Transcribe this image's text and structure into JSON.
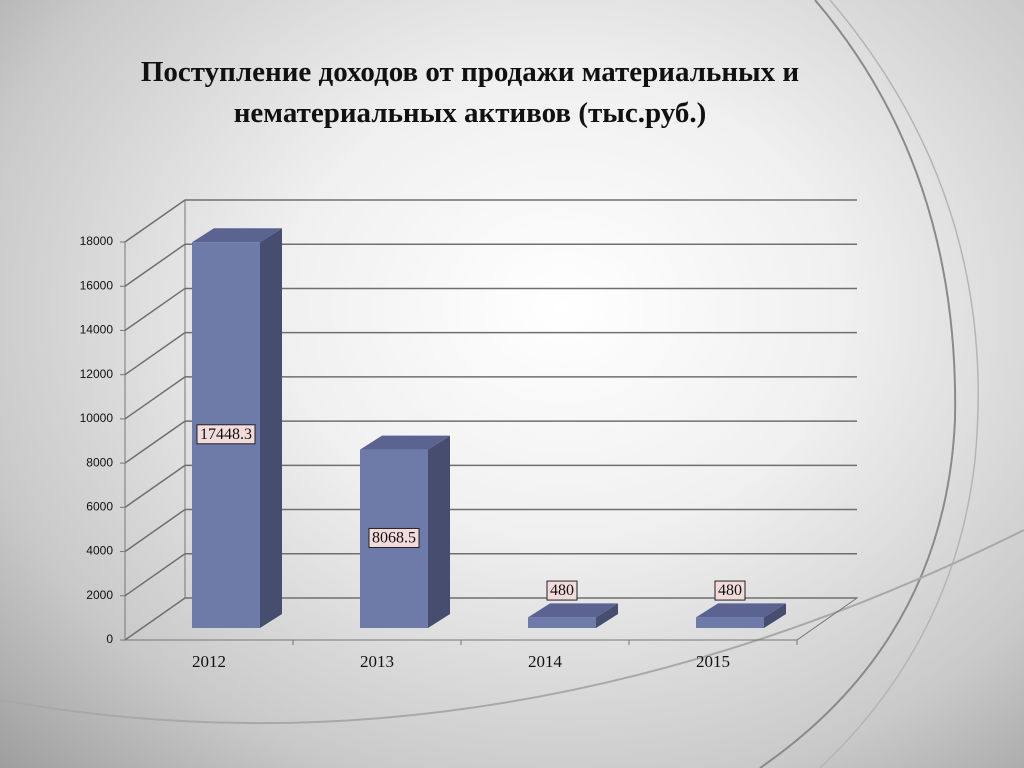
{
  "chart_data": {
    "type": "bar3d",
    "title": "Поступление доходов от продажи материальных и нематериальных активов (тыс.руб.)",
    "categories": [
      "2012",
      "2013",
      "2014",
      "2015"
    ],
    "values": [
      17448.3,
      8068.5,
      480,
      480
    ],
    "color": "#6e7aa8",
    "ylim": [
      0,
      18000
    ],
    "yticks": [
      0,
      2000,
      4000,
      6000,
      8000,
      10000,
      12000,
      14000,
      16000,
      18000
    ],
    "grid": true,
    "data_labels": true
  }
}
